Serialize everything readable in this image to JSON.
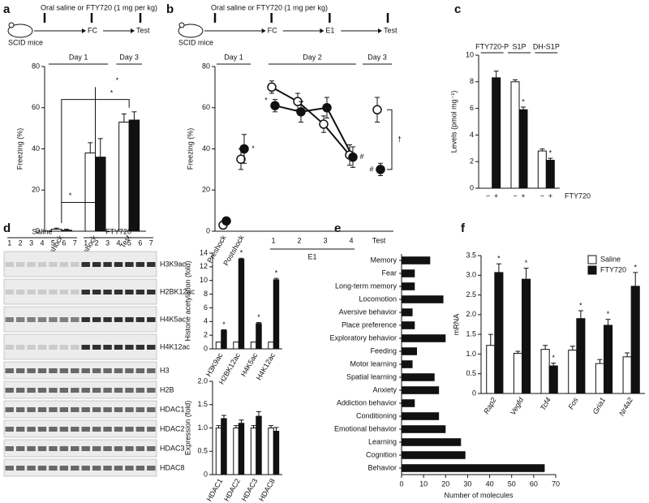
{
  "chart_data": [
    {
      "panel": "a",
      "type": "bar",
      "ylabel": "Freezing (%)",
      "schematic": {
        "treatment": "Oral saline or FTY720 (1 mg per kg)",
        "subject": "SCID mice",
        "steps": [
          "FC",
          "Test"
        ]
      },
      "day_labels": [
        "Day 1",
        "Day 3"
      ],
      "categories": [
        "Preshock",
        "Postshock",
        "Test"
      ],
      "series": [
        {
          "name": "Saline",
          "color": "#ffffff",
          "values": [
            1,
            38,
            53
          ],
          "errors": [
            0.5,
            5,
            4
          ]
        },
        {
          "name": "FTY720",
          "color": "#111111",
          "values": [
            0.5,
            36,
            54
          ],
          "errors": [
            0.5,
            9,
            4
          ]
        }
      ],
      "annotations": [
        "*",
        "*",
        "*"
      ],
      "ylim": [
        0,
        80
      ],
      "yticks": [
        0,
        20,
        40,
        60,
        80
      ]
    },
    {
      "panel": "b",
      "type": "line",
      "ylabel": "Freezing (%)",
      "schematic": {
        "treatment": "Oral saline or FTY720 (1 mg per kg)",
        "subject": "SCID mice",
        "steps": [
          "FC",
          "E1",
          "Test"
        ]
      },
      "day_labels": [
        "Day 1",
        "Day 2",
        "Day 3"
      ],
      "categories": [
        "Preshock",
        "Postshock",
        "1",
        "2",
        "3",
        "4",
        "Test"
      ],
      "group_labels": [
        "E1"
      ],
      "series": [
        {
          "name": "Saline",
          "color": "#ffffff",
          "values": [
            3,
            35,
            70,
            63,
            52,
            37,
            59
          ],
          "errors": [
            1.5,
            5,
            3,
            4,
            4,
            5,
            6
          ]
        },
        {
          "name": "FTY720",
          "color": "#111111",
          "values": [
            5,
            40,
            61,
            58,
            60,
            36,
            30
          ],
          "errors": [
            1.5,
            7,
            3,
            5,
            5,
            5,
            3
          ],
          "value_notes": [
            null,
            "*",
            "*",
            null,
            null,
            "#",
            "#"
          ]
        }
      ],
      "annotations": [
        "†"
      ],
      "ylim": [
        0,
        80
      ],
      "yticks": [
        0,
        20,
        40,
        60,
        80
      ]
    },
    {
      "panel": "c",
      "type": "bar",
      "ylabel": "Levels (pmol mg⁻¹)",
      "categories": [
        "FTY720-P",
        "S1P",
        "DH-S1P"
      ],
      "x_signs": [
        "−",
        "+"
      ],
      "xlabel": "FTY720",
      "series": [
        {
          "name": "Saline",
          "color": "#ffffff",
          "values": [
            null,
            8.0,
            2.8
          ],
          "errors": [
            null,
            0.15,
            0.15
          ]
        },
        {
          "name": "FTY720",
          "color": "#111111",
          "values": [
            8.3,
            5.9,
            2.1
          ],
          "errors": [
            0.5,
            0.2,
            0.15
          ],
          "value_notes": [
            null,
            "*",
            "*"
          ]
        }
      ],
      "ylim": [
        0,
        10
      ],
      "yticks": [
        0,
        2,
        4,
        6,
        8,
        10
      ]
    },
    {
      "type": "bar",
      "ylabel": "Histone acetylation (fold)",
      "categories": [
        "H3K9ac",
        "H2BK12ac",
        "H4K5ac",
        "H4K12ac"
      ],
      "series": [
        {
          "name": "Saline",
          "color": "#ffffff",
          "values": [
            1,
            1,
            1,
            1
          ]
        },
        {
          "name": "FTY720",
          "color": "#111111",
          "values": [
            2.7,
            13.1,
            3.7,
            10.1
          ],
          "errors": [
            0.1,
            0.15,
            0.15,
            0.2
          ],
          "value_notes": [
            "*",
            "*",
            "*",
            "*"
          ]
        }
      ],
      "ylim": [
        0,
        14
      ],
      "yticks": [
        0,
        2,
        4,
        6,
        8,
        10,
        12,
        14
      ]
    },
    {
      "type": "bar",
      "ylabel": "Expression (fold)",
      "categories": [
        "HDAC1",
        "HDAC2",
        "HDAC3",
        "HDAC8"
      ],
      "series": [
        {
          "name": "Saline",
          "color": "#ffffff",
          "values": [
            1,
            1,
            1,
            1
          ],
          "errors": [
            0.05,
            0.05,
            0.05,
            0.05
          ]
        },
        {
          "name": "FTY720",
          "color": "#111111",
          "values": [
            1.2,
            1.1,
            1.25,
            0.93
          ],
          "errors": [
            0.07,
            0.07,
            0.1,
            0.08
          ]
        }
      ],
      "ylim": [
        0,
        2
      ],
      "yticks": [
        0,
        0.5,
        {
          "value": 1,
          "label": "1.0"
        },
        1.5,
        {
          "value": 2,
          "label": "2.0"
        }
      ]
    },
    {
      "panel": "e",
      "type": "hbar",
      "xlabel": "Number of molecules",
      "color": "#111111",
      "categories": [
        "Memory",
        "Fear",
        "Long-term memory",
        "Locomotion",
        "Aversive behavior",
        "Place preference",
        "Exploratory behavior",
        "Feeding",
        "Motor learning",
        "Spatial learning",
        "Anxiety",
        "Addiction behavior",
        "Conditioning",
        "Emotional behavior",
        "Learning",
        "Cognition",
        "Behavior"
      ],
      "values": [
        13,
        6,
        6,
        19,
        5,
        6,
        20,
        7,
        5,
        15,
        17,
        6,
        17,
        20,
        27,
        29,
        65
      ],
      "xlim": [
        0,
        70
      ],
      "xticks": [
        0,
        10,
        20,
        30,
        40,
        50,
        60,
        70
      ]
    },
    {
      "panel": "f",
      "type": "bar",
      "ylabel": "mRNA",
      "legend": "upper right",
      "categories": [
        "Rap2",
        "Vegfd",
        "Tcf4",
        "Fos",
        "Gria1",
        "Nr4a2"
      ],
      "series": [
        {
          "name": "Saline",
          "color": "#ffffff",
          "values": [
            1.22,
            1.02,
            1.12,
            1.1,
            0.76,
            0.93
          ],
          "errors": [
            0.28,
            0.05,
            0.1,
            0.1,
            0.1,
            0.1
          ]
        },
        {
          "name": "FTY720",
          "color": "#111111",
          "values": [
            3.07,
            2.9,
            0.7,
            1.9,
            1.73,
            2.72
          ],
          "errors": [
            0.22,
            0.28,
            0.07,
            0.2,
            0.15,
            0.35
          ],
          "value_notes": [
            "*",
            "*",
            "*",
            "*",
            "*",
            "*"
          ]
        }
      ],
      "ylim": [
        0,
        3.5
      ],
      "yticks": [
        0,
        0.5,
        {
          "value": 1,
          "label": "1.0"
        },
        1.5,
        {
          "value": 2,
          "label": "2.0"
        },
        2.5,
        {
          "value": 3,
          "label": "3.0"
        },
        3.5
      ]
    }
  ],
  "blot": {
    "panel": "d",
    "groups": [
      "Saline",
      "FTY720"
    ],
    "lanes": [
      "1",
      "2",
      "3",
      "4",
      "5",
      "6",
      "7"
    ],
    "bands": [
      "H3K9ac",
      "H2BK12ac",
      "H4K5ac",
      "H4K12ac",
      "H3",
      "H2B",
      "HDAC1",
      "HDAC2",
      "HDAC3",
      "HDAC8"
    ]
  }
}
